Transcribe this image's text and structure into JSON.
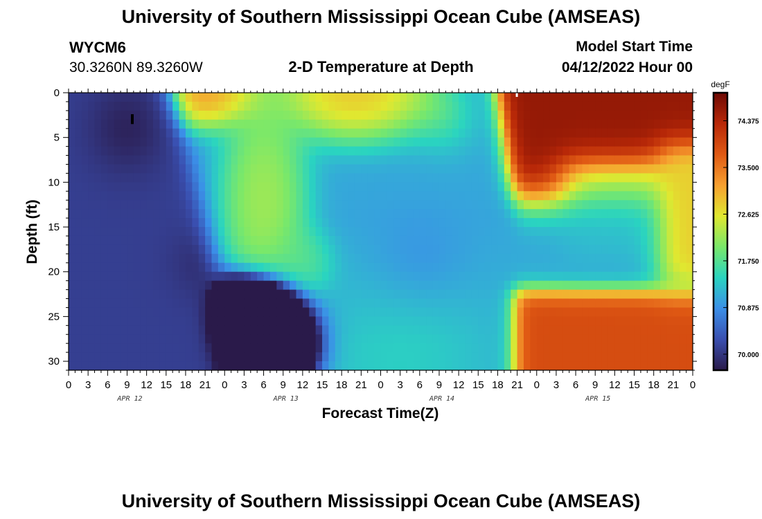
{
  "header": {
    "title": "University of Southern Mississippi Ocean Cube (AMSEAS)",
    "station_id": "WYCM6",
    "station_coords": "30.3260N  89.3260W",
    "plot_title": "2-D Temperature at Depth",
    "model_start_label": "Model Start Time",
    "model_start_value": "04/12/2022 Hour 00"
  },
  "footer": {
    "title": "University of Southern Mississippi Ocean Cube (AMSEAS)"
  },
  "chart_data": {
    "type": "heatmap",
    "title": "2-D Temperature at Depth",
    "xlabel": "Forecast Time(Z)",
    "ylabel": "Depth (ft)",
    "x_ticks": [
      "0",
      "3",
      "6",
      "9",
      "12",
      "15",
      "18",
      "21",
      "0",
      "3",
      "6",
      "9",
      "12",
      "15",
      "18",
      "21",
      "0",
      "3",
      "6",
      "9",
      "12",
      "15",
      "18",
      "21",
      "0",
      "3",
      "6",
      "9",
      "12",
      "15",
      "18",
      "21",
      "0"
    ],
    "x_hours_range": [
      0,
      96
    ],
    "date_labels": [
      {
        "label": "APR 12",
        "hour": 9
      },
      {
        "label": "APR 13",
        "hour": 33
      },
      {
        "label": "APR 14",
        "hour": 57
      },
      {
        "label": "APR 15",
        "hour": 81
      }
    ],
    "y_ticks": [
      0,
      5,
      10,
      15,
      20,
      25,
      30
    ],
    "y_range": [
      0,
      31
    ],
    "y_inverted": true,
    "colorbar": {
      "unit": "degF",
      "range": [
        69.7,
        74.9
      ],
      "ticks": [
        "74.375",
        "73.500",
        "72.625",
        "71.750",
        "70.875",
        "70.000"
      ],
      "colors": [
        "#2a1a4a",
        "#3a4fb0",
        "#3b8fe8",
        "#2ad4c0",
        "#7ae86a",
        "#e0e830",
        "#f7a030",
        "#e05a14",
        "#b82808",
        "#6e0a04"
      ]
    },
    "grid": false,
    "regimes": [
      {
        "zone": "surface, hours 0-15",
        "value_degF": 69.8
      },
      {
        "zone": "cold core ~hour 9, 2-8 ft",
        "value_degF": 69.8
      },
      {
        "zone": "warm tongue hours 17-24 upper",
        "value_degF": 73.8
      },
      {
        "zone": "mid-period 30-70 h, 15-25 ft",
        "value_degF": 71.1
      },
      {
        "zone": "surface hours 68-96",
        "value_degF": 74.6
      },
      {
        "zone": "bottom hours 68-96",
        "value_degF": 73.9
      }
    ]
  }
}
